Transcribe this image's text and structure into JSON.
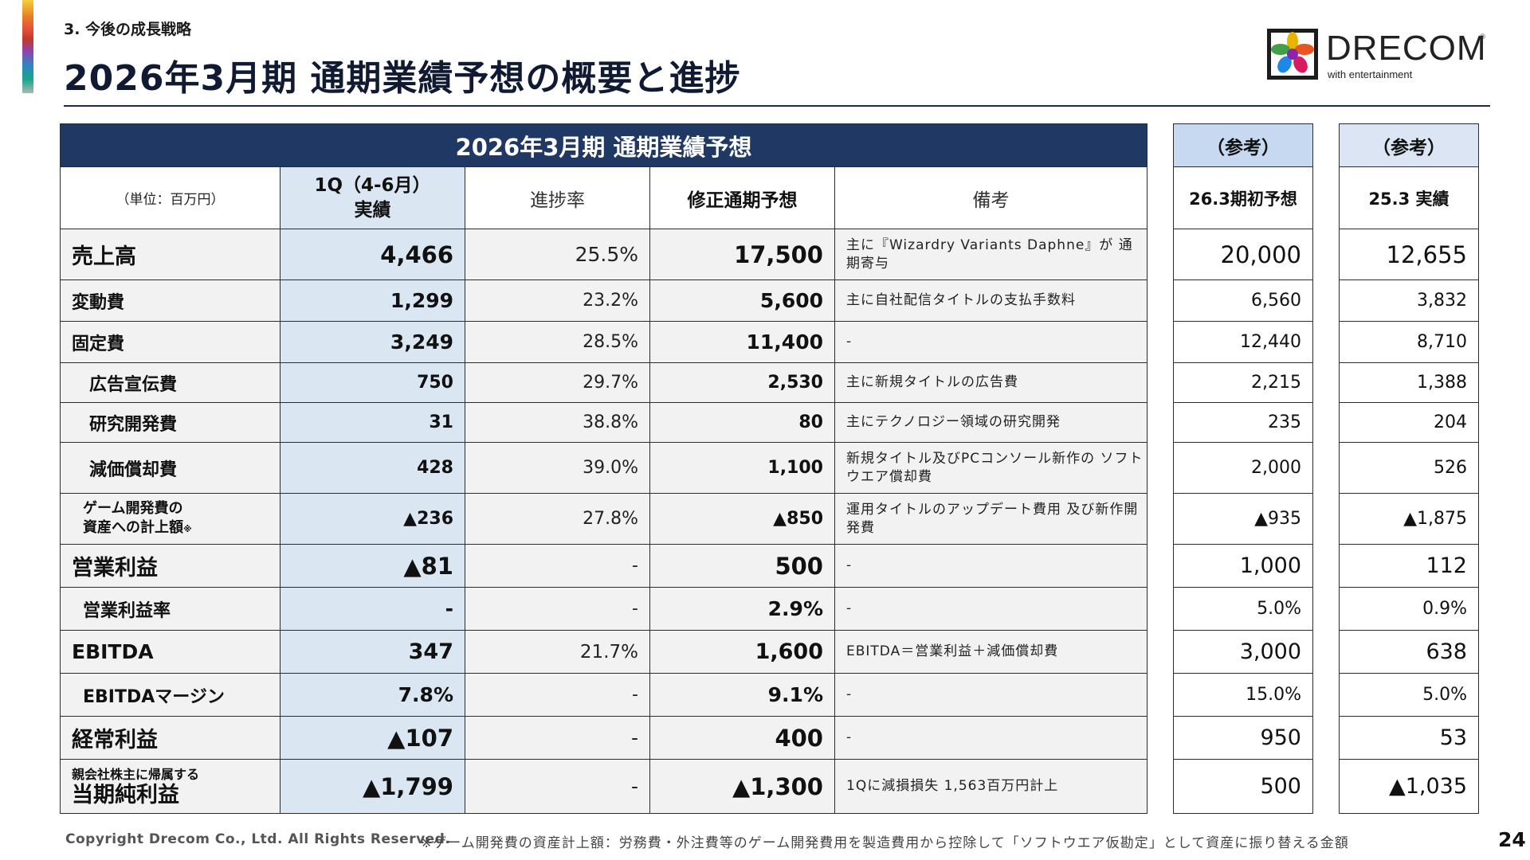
{
  "header": {
    "section": "3. 今後の成長戦略",
    "title": "2026年3月期 通期業績予想の概要と進捗",
    "logo_text": "DRECOM",
    "logo_tagline": "with entertainment",
    "logo_reg": "®"
  },
  "table": {
    "title": "2026年3月期 通期業績予想",
    "unit": "（単位：百万円）",
    "col_q1_line1": "1Q（4-6月）",
    "col_q1_line2": "実績",
    "col_progress": "進捗率",
    "col_forecast": "修正通期予想",
    "col_notes": "備考",
    "ref1_header": "（参考）",
    "ref1_col": "26.3期初予想",
    "ref2_header": "（参考）",
    "ref2_col": "25.3 実績",
    "rows": [
      {
        "label": "売上高",
        "q1": "4,466",
        "progress": "25.5%",
        "forecast": "17,500",
        "note": "主に『Wizardry Variants Daphne』が 通期寄与",
        "ref1": "20,000",
        "ref2": "12,655"
      },
      {
        "label": "変動費",
        "q1": "1,299",
        "progress": "23.2%",
        "forecast": "5,600",
        "note": "主に自社配信タイトルの支払手数料",
        "ref1": "6,560",
        "ref2": "3,832"
      },
      {
        "label": "固定費",
        "q1": "3,249",
        "progress": "28.5%",
        "forecast": "11,400",
        "note": "-",
        "ref1": "12,440",
        "ref2": "8,710"
      },
      {
        "label": "広告宣伝費",
        "q1": "750",
        "progress": "29.7%",
        "forecast": "2,530",
        "note": "主に新規タイトルの広告費",
        "ref1": "2,215",
        "ref2": "1,388"
      },
      {
        "label": "研究開発費",
        "q1": "31",
        "progress": "38.8%",
        "forecast": "80",
        "note": "主にテクノロジー領域の研究開発",
        "ref1": "235",
        "ref2": "204"
      },
      {
        "label": "減価償却費",
        "q1": "428",
        "progress": "39.0%",
        "forecast": "1,100",
        "note": "新規タイトル及びPCコンソール新作の ソフトウエア償却費",
        "ref1": "2,000",
        "ref2": "526"
      },
      {
        "label_line1": "ゲーム開発費の",
        "label_line2": "資産への計上額",
        "label_mark": "※",
        "q1": "▲236",
        "progress": "27.8%",
        "forecast": "▲850",
        "note": "運用タイトルのアップデート費用 及び新作開発費",
        "ref1": "▲935",
        "ref2": "▲1,875"
      },
      {
        "label": "営業利益",
        "q1": "▲81",
        "progress": "-",
        "forecast": "500",
        "note": "-",
        "ref1": "1,000",
        "ref2": "112"
      },
      {
        "label": "営業利益率",
        "q1": "-",
        "progress": "-",
        "forecast": "2.9%",
        "note": "-",
        "ref1": "5.0%",
        "ref2": "0.9%"
      },
      {
        "label": "EBITDA",
        "q1": "347",
        "progress": "21.7%",
        "forecast": "1,600",
        "note": "EBITDA＝営業利益＋減価償却費",
        "ref1": "3,000",
        "ref2": "638"
      },
      {
        "label": "EBITDAマージン",
        "q1": "7.8%",
        "progress": "-",
        "forecast": "9.1%",
        "note": "-",
        "ref1": "15.0%",
        "ref2": "5.0%"
      },
      {
        "label": "経常利益",
        "q1": "▲107",
        "progress": "-",
        "forecast": "400",
        "note": "-",
        "ref1": "950",
        "ref2": "53"
      },
      {
        "label_small": "親会社株主に帰属する",
        "label": "当期純利益",
        "q1": "▲1,799",
        "progress": "-",
        "forecast": "▲1,300",
        "note": "1Qに減損損失 1,563百万円計上",
        "ref1": "500",
        "ref2": "▲1,035"
      }
    ]
  },
  "footer": {
    "copyright": "Copyright Drecom Co., Ltd. All Rights Reserved.",
    "footnote": "※ゲーム開発費の資産計上額：労務費・外注費等のゲーム開発費用を製造費用から控除して「ソフトウエア仮勘定」として資産に振り替える金額",
    "page": "24"
  }
}
